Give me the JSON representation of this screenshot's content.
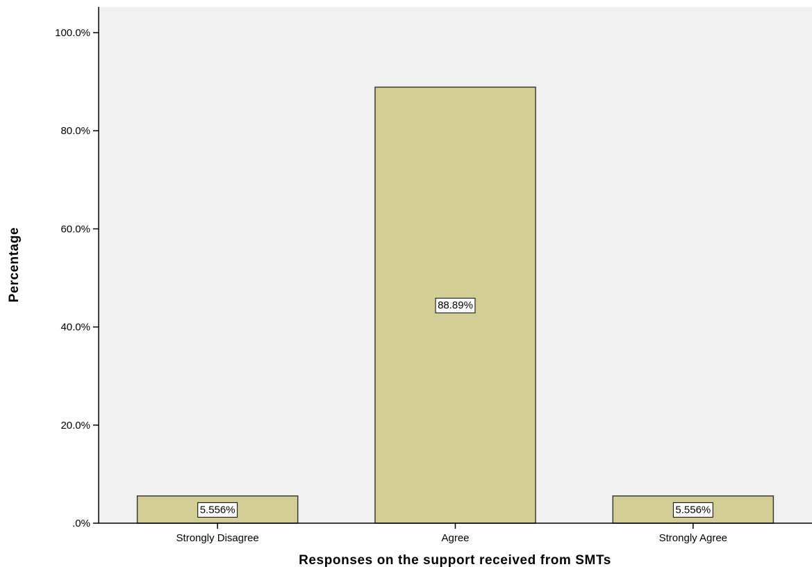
{
  "chart_data": {
    "type": "bar",
    "categories": [
      "Strongly Disagree",
      "Agree",
      "Strongly Agree"
    ],
    "values": [
      5.556,
      88.89,
      5.556
    ],
    "data_labels": [
      "5.556%",
      "88.89%",
      "5.556%"
    ],
    "title": "",
    "xlabel": "Responses on the support received from SMTs",
    "ylabel": "Percentage",
    "ylim": [
      0,
      100
    ],
    "yticks": [
      0,
      20,
      40,
      60,
      80,
      100
    ],
    "ytick_labels": [
      ".0%",
      "20.0%",
      "40.0%",
      "60.0%",
      "80.0%",
      "100.0%"
    ],
    "grid": false,
    "legend": "none",
    "colors": {
      "bar_fill": "#d4cd96",
      "bar_stroke": "#3a3a3a",
      "plot_background": "#f0f0f0",
      "axis": "#000000"
    }
  }
}
